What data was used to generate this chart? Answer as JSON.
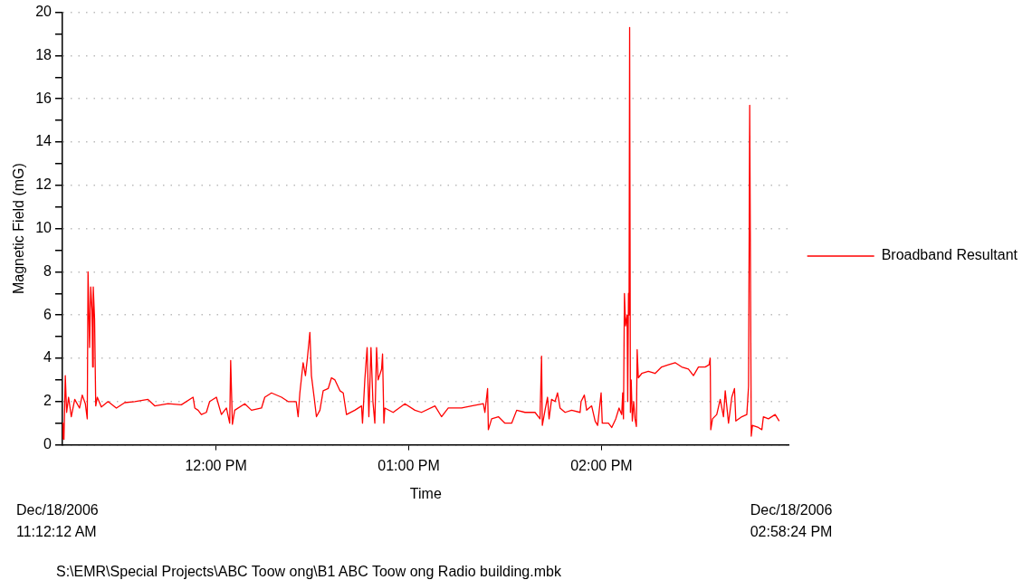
{
  "chart_data": {
    "type": "line",
    "xlabel": "Time",
    "ylabel": "Magnetic Field (mG)",
    "xlim": [
      11.2033,
      14.9733
    ],
    "xticks": [
      {
        "value": 12,
        "label": "12:00 PM"
      },
      {
        "value": 13,
        "label": "01:00 PM"
      },
      {
        "value": 14,
        "label": "02:00 PM"
      }
    ],
    "ylim": [
      0,
      20
    ],
    "yticks": [
      0,
      {
        "value": 1,
        "label": null
      },
      2,
      {
        "value": 3,
        "label": null
      },
      4,
      {
        "value": 5,
        "label": null
      },
      6,
      {
        "value": 7,
        "label": null
      },
      8,
      {
        "value": 9,
        "label": null
      },
      10,
      {
        "value": 11,
        "label": null
      },
      12,
      {
        "value": 13,
        "label": null
      },
      14,
      {
        "value": 15,
        "label": null
      },
      16,
      {
        "value": 17,
        "label": null
      },
      18,
      {
        "value": 19,
        "label": null
      },
      20
    ],
    "grid": "y",
    "legend": "right",
    "marker": "none",
    "line_style": "solid",
    "annotations": [
      "Dec/18/2006\n11:12:12 AM",
      "Dec/18/2006\n02:58:24 PM",
      "S:\\EMR\\Special Projects\\ABC Toow ong\\B1 ABC Toow ong Radio building.mbk"
    ],
    "series": [
      {
        "name": "Broadband Resultant",
        "color": "#ff0000",
        "x": [
          11.204,
          11.206,
          11.211,
          11.218,
          11.225,
          11.235,
          11.249,
          11.267,
          11.292,
          11.306,
          11.322,
          11.332,
          11.336,
          11.344,
          11.35,
          11.357,
          11.36,
          11.363,
          11.37,
          11.376,
          11.384,
          11.405,
          11.44,
          11.483,
          11.526,
          11.578,
          11.647,
          11.682,
          11.751,
          11.82,
          11.881,
          11.89,
          11.907,
          11.924,
          11.95,
          11.967,
          12.002,
          12.028,
          12.054,
          12.071,
          12.076,
          12.085,
          12.097,
          12.149,
          12.184,
          12.236,
          12.253,
          12.288,
          12.34,
          12.374,
          12.416,
          12.426,
          12.435,
          12.452,
          12.464,
          12.474,
          12.487,
          12.495,
          12.509,
          12.521,
          12.539,
          12.556,
          12.582,
          12.599,
          12.617,
          12.643,
          12.66,
          12.677,
          12.72,
          12.755,
          12.76,
          12.772,
          12.784,
          12.793,
          12.804,
          12.814,
          12.824,
          12.833,
          12.841,
          12.859,
          12.864,
          12.871,
          12.876,
          12.919,
          12.98,
          13.032,
          13.066,
          13.136,
          13.17,
          13.205,
          13.274,
          13.326,
          13.387,
          13.395,
          13.409,
          13.413,
          13.43,
          13.465,
          13.499,
          13.534,
          13.56,
          13.603,
          13.655,
          13.681,
          13.689,
          13.693,
          13.707,
          13.72,
          13.728,
          13.741,
          13.759,
          13.772,
          13.785,
          13.811,
          13.845,
          13.889,
          13.894,
          13.911,
          13.923,
          13.949,
          13.967,
          13.98,
          13.998,
          14.004,
          14.036,
          14.053,
          14.074,
          14.091,
          14.105,
          14.11,
          14.114,
          14.119,
          14.125,
          14.133,
          14.136,
          14.14,
          14.143,
          14.146,
          14.15,
          14.154,
          14.16,
          14.167,
          14.174,
          14.181,
          14.185,
          14.191,
          14.209,
          14.243,
          14.278,
          14.312,
          14.347,
          14.382,
          14.416,
          14.451,
          14.477,
          14.503,
          14.538,
          14.558,
          14.564,
          14.567,
          14.576,
          14.598,
          14.616,
          14.633,
          14.642,
          14.659,
          14.676,
          14.69,
          14.697,
          14.728,
          14.754,
          14.763,
          14.769,
          14.777,
          14.783,
          14.814,
          14.832,
          14.84,
          14.866,
          14.901,
          14.922
        ],
        "values": [
          1.0,
          0.3,
          0.25,
          3.2,
          1.5,
          2.2,
          1.3,
          2.1,
          1.7,
          2.3,
          1.9,
          1.2,
          8.0,
          4.5,
          7.3,
          6.2,
          3.6,
          7.3,
          5.8,
          1.8,
          2.2,
          1.75,
          2.0,
          1.7,
          1.95,
          2.0,
          2.1,
          1.8,
          1.9,
          1.85,
          2.2,
          1.7,
          1.6,
          1.4,
          1.5,
          2.0,
          2.2,
          1.4,
          1.7,
          1.0,
          3.9,
          0.95,
          1.6,
          1.9,
          1.6,
          1.7,
          2.2,
          2.4,
          2.2,
          2.0,
          2.0,
          1.3,
          2.4,
          3.8,
          3.2,
          4.0,
          5.2,
          3.2,
          2.2,
          1.3,
          1.6,
          2.5,
          2.6,
          3.1,
          3.0,
          2.5,
          2.4,
          1.4,
          1.6,
          1.8,
          1.0,
          3.0,
          4.5,
          1.3,
          4.5,
          2.0,
          1.0,
          4.5,
          3.0,
          3.5,
          4.2,
          1.0,
          1.7,
          1.5,
          1.9,
          1.6,
          1.5,
          1.8,
          1.3,
          1.7,
          1.7,
          1.8,
          1.9,
          1.5,
          2.6,
          0.7,
          1.2,
          1.3,
          1.0,
          1.0,
          1.6,
          1.5,
          1.5,
          1.2,
          4.1,
          0.9,
          1.6,
          2.2,
          1.2,
          2.1,
          2.0,
          2.4,
          1.7,
          1.5,
          1.6,
          1.5,
          2.0,
          2.3,
          1.6,
          1.8,
          1.1,
          0.9,
          2.4,
          1.0,
          1.0,
          0.8,
          1.2,
          1.7,
          1.4,
          2.4,
          1.2,
          7.0,
          5.5,
          6.0,
          2.0,
          7.0,
          6.0,
          19.3,
          1.5,
          3.0,
          1.1,
          2.0,
          1.2,
          0.85,
          4.4,
          3.1,
          3.3,
          3.4,
          3.3,
          3.6,
          3.7,
          3.8,
          3.6,
          3.5,
          3.2,
          3.6,
          3.6,
          3.7,
          4.0,
          0.7,
          1.2,
          1.4,
          2.1,
          1.3,
          2.5,
          1.0,
          2.2,
          2.6,
          1.1,
          1.3,
          1.4,
          2.7,
          15.7,
          0.4,
          0.9,
          0.8,
          0.7,
          1.3,
          1.2,
          1.4,
          1.1
        ]
      }
    ]
  }
}
